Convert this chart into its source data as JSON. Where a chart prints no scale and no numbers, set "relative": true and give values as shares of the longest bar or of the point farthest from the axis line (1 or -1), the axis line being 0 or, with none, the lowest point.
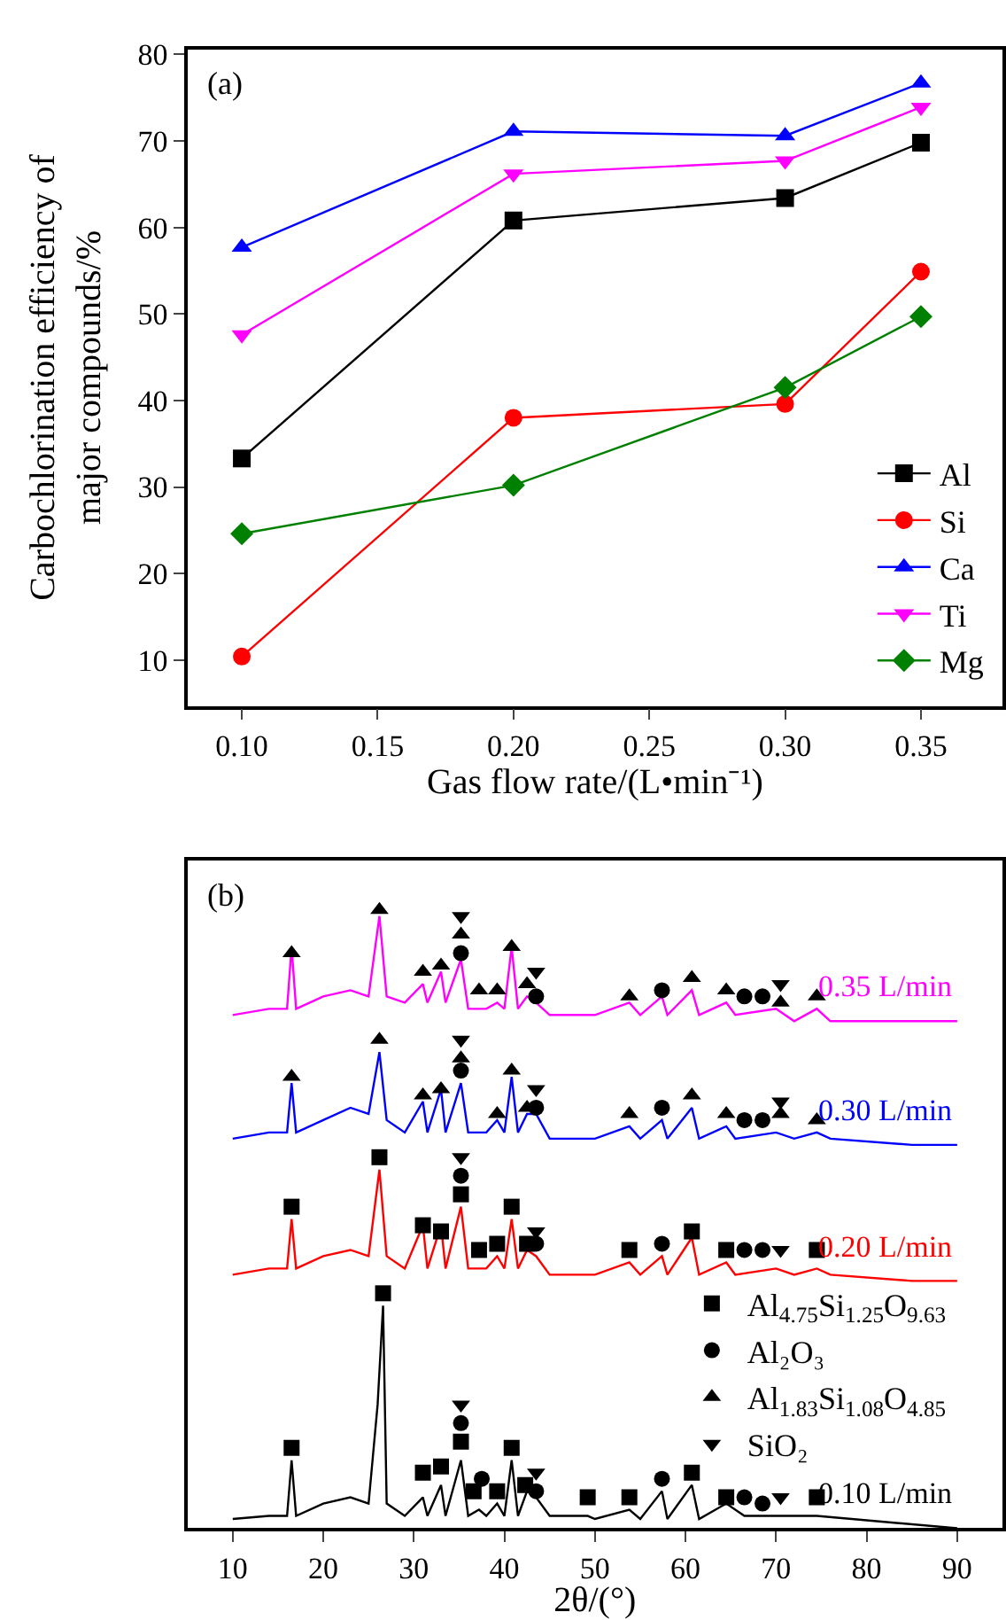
{
  "chart_data": [
    {
      "type": "line",
      "xlabel": "Gas flow rate/(L•min⁻¹)",
      "ylabel": "Carbochlorination efficiency of\nmajor compounds/%",
      "annotations": [
        "(a)"
      ],
      "x": [
        0.1,
        0.2,
        0.3,
        0.35
      ],
      "xlim": [
        0.08,
        0.38
      ],
      "xticks": [
        {
          "value": 0.1,
          "label": "0.10"
        },
        {
          "value": 0.15,
          "label": "0.15"
        },
        {
          "value": 0.2,
          "label": "0.20"
        },
        {
          "value": 0.25,
          "label": "0.25"
        },
        {
          "value": 0.3,
          "label": "0.30"
        },
        {
          "value": 0.35,
          "label": "0.35"
        }
      ],
      "ylim": [
        4.7,
        80.6
      ],
      "yticks": [
        10,
        20,
        30,
        40,
        50,
        60,
        70,
        80
      ],
      "legend": "bottom right",
      "series": [
        {
          "name": "Al",
          "color": "#000000",
          "marker": "square",
          "values": [
            33.3,
            60.8,
            63.4,
            69.8
          ]
        },
        {
          "name": "Si",
          "color": "#ff0000",
          "marker": "circle",
          "values": [
            10.4,
            38.0,
            39.6,
            54.9
          ]
        },
        {
          "name": "Ca",
          "color": "#0000ff",
          "marker": "triangle",
          "values": [
            57.7,
            71.1,
            70.6,
            76.7
          ]
        },
        {
          "name": "Ti",
          "color": "#ff00ff",
          "marker": "triangle-down",
          "values": [
            47.6,
            66.2,
            67.7,
            73.9
          ]
        },
        {
          "name": "Mg",
          "color": "#008000",
          "marker": "diamond",
          "values": [
            24.6,
            30.2,
            41.5,
            49.7
          ]
        }
      ]
    },
    {
      "type": "line",
      "xlabel": "2θ/(°)",
      "annotations": [
        "(b)"
      ],
      "relative": true,
      "xlim": [
        5,
        95
      ],
      "xticks": [
        10,
        20,
        30,
        40,
        50,
        60,
        70,
        80,
        90
      ],
      "legend": "right",
      "tick_labels": "x",
      "series": [
        {
          "name": "0.35 L/min",
          "color": "#ff00ff",
          "marker": "none",
          "x": [
            10,
            14,
            16,
            16.5,
            17,
            20,
            23,
            25,
            26.2,
            27,
            29,
            31,
            31.5,
            33,
            33.5,
            35.2,
            36,
            38,
            39.2,
            40,
            40.8,
            41.5,
            42.5,
            43.5,
            45,
            50,
            53.8,
            55,
            57.4,
            58,
            60.7,
            61.5,
            64.5,
            65.5,
            70,
            72,
            74.5,
            76,
            85,
            90
          ],
          "values": [
            0.83,
            0.84,
            0.84,
            0.94,
            0.84,
            0.86,
            0.87,
            0.86,
            0.99,
            0.86,
            0.85,
            0.88,
            0.85,
            0.9,
            0.85,
            0.92,
            0.84,
            0.84,
            0.85,
            0.84,
            0.94,
            0.84,
            0.86,
            0.85,
            0.83,
            0.83,
            0.85,
            0.83,
            0.86,
            0.83,
            0.87,
            0.83,
            0.85,
            0.83,
            0.84,
            0.82,
            0.84,
            0.82,
            0.82,
            0.82
          ]
        },
        {
          "name": "0.30 L/min",
          "color": "#0000ff",
          "marker": "none",
          "x": [
            10,
            14,
            16,
            16.5,
            17,
            20,
            23,
            25,
            26.2,
            27,
            29,
            31,
            31.5,
            33,
            33.5,
            35.2,
            36,
            38,
            39.2,
            40,
            40.8,
            41.5,
            42.5,
            43.5,
            45,
            50,
            53.8,
            55,
            57.4,
            58,
            60.7,
            61.5,
            64.5,
            65.5,
            70,
            72,
            74.5,
            76,
            85,
            90
          ],
          "values": [
            0.63,
            0.64,
            0.64,
            0.72,
            0.64,
            0.66,
            0.68,
            0.67,
            0.77,
            0.66,
            0.64,
            0.69,
            0.64,
            0.71,
            0.64,
            0.72,
            0.64,
            0.64,
            0.66,
            0.64,
            0.73,
            0.64,
            0.67,
            0.67,
            0.63,
            0.63,
            0.65,
            0.63,
            0.66,
            0.63,
            0.68,
            0.63,
            0.65,
            0.63,
            0.64,
            0.63,
            0.64,
            0.63,
            0.62,
            0.62
          ]
        },
        {
          "name": "0.20 L/min",
          "color": "#ff0000",
          "marker": "none",
          "x": [
            10,
            14,
            16,
            16.5,
            17,
            20,
            23,
            25,
            26.2,
            27,
            29,
            31,
            31.5,
            33,
            33.5,
            35.2,
            36,
            38,
            39.2,
            40,
            40.8,
            41.5,
            42.5,
            43.5,
            45,
            50,
            53.8,
            55,
            57.4,
            58,
            60.7,
            61.5,
            64.5,
            65.5,
            70,
            72,
            74.5,
            76,
            85,
            90
          ],
          "values": [
            0.41,
            0.42,
            0.42,
            0.5,
            0.42,
            0.44,
            0.45,
            0.44,
            0.58,
            0.44,
            0.42,
            0.49,
            0.42,
            0.49,
            0.42,
            0.52,
            0.42,
            0.42,
            0.44,
            0.42,
            0.5,
            0.42,
            0.45,
            0.44,
            0.41,
            0.41,
            0.43,
            0.41,
            0.44,
            0.41,
            0.47,
            0.41,
            0.43,
            0.41,
            0.42,
            0.41,
            0.42,
            0.41,
            0.4,
            0.4
          ]
        },
        {
          "name": "0.10 L/min",
          "color": "#000000",
          "marker": "none",
          "x": [
            10,
            14,
            16,
            16.5,
            17,
            20,
            23,
            25,
            26,
            26.6,
            27,
            29,
            31,
            31.5,
            33,
            33.5,
            35.2,
            36,
            37.2,
            38,
            39.2,
            40,
            40.8,
            41.5,
            42.5,
            43.5,
            45,
            49.2,
            50,
            53.8,
            55,
            57.4,
            58,
            60.7,
            61.5,
            64.5,
            66.5,
            70.5,
            74.5,
            90
          ],
          "values": [
            0.015,
            0.02,
            0.02,
            0.11,
            0.02,
            0.04,
            0.05,
            0.04,
            0.2,
            0.36,
            0.04,
            0.02,
            0.05,
            0.02,
            0.07,
            0.02,
            0.11,
            0.02,
            0.03,
            0.02,
            0.04,
            0.02,
            0.11,
            0.02,
            0.06,
            0.05,
            0.02,
            0.02,
            0.015,
            0.03,
            0.015,
            0.06,
            0.015,
            0.07,
            0.015,
            0.04,
            0.02,
            0.02,
            0.02,
            0.0
          ]
        },
        {
          "name": "Al$_{4.75}$Si$_{1.25}$O$_{9.63}$",
          "type": "scatter",
          "color": "#000000",
          "marker": "square",
          "x": [
            16.5,
            26.2,
            31,
            33,
            35.2,
            37.2,
            39.2,
            40.8,
            42.5,
            53.8,
            60.7,
            64.5,
            74.5,
            16.5,
            26.6,
            31,
            33,
            35.2,
            36.6,
            39.2,
            40.8,
            42.3,
            49.2,
            53.8,
            60.7,
            64.5,
            74.5
          ],
          "values": [
            0.52,
            0.6,
            0.49,
            0.48,
            0.54,
            0.45,
            0.46,
            0.52,
            0.46,
            0.45,
            0.48,
            0.45,
            0.45,
            0.13,
            0.38,
            0.09,
            0.1,
            0.14,
            0.06,
            0.06,
            0.13,
            0.07,
            0.05,
            0.05,
            0.09,
            0.05,
            0.05
          ]
        },
        {
          "name": "Al₂O₃",
          "type": "scatter",
          "color": "#000000",
          "marker": "circle",
          "x": [
            35.2,
            43.5,
            57.4,
            66.5,
            68.5,
            35.2,
            43.5,
            57.4,
            66.5,
            68.5,
            35.2,
            43.5,
            57.4,
            66.5,
            68.5,
            35.2,
            37.5,
            43.5,
            57.4,
            66.5,
            68.5
          ],
          "values": [
            0.93,
            0.86,
            0.87,
            0.86,
            0.86,
            0.74,
            0.68,
            0.68,
            0.66,
            0.66,
            0.57,
            0.46,
            0.46,
            0.45,
            0.45,
            0.17,
            0.08,
            0.06,
            0.08,
            0.05,
            0.04
          ]
        },
        {
          "name": "Al$_{1.83}$Si$_{1.08}$O$_{4.85}$",
          "type": "scatter",
          "color": "#000000",
          "marker": "triangle",
          "x": [
            16.5,
            26.2,
            31,
            33,
            35.2,
            37.2,
            39.2,
            40.8,
            42.5,
            53.8,
            60.7,
            64.5,
            70.5,
            74.5,
            16.5,
            26.2,
            31,
            33,
            35.2,
            39.2,
            40.8,
            42.5,
            53.8,
            60.7,
            64.5,
            70.5,
            74.5
          ],
          "values": [
            0.93,
            1.0,
            0.9,
            0.91,
            0.96,
            0.87,
            0.87,
            0.94,
            0.88,
            0.86,
            0.89,
            0.87,
            0.85,
            0.86,
            0.73,
            0.79,
            0.7,
            0.71,
            0.76,
            0.67,
            0.74,
            0.68,
            0.67,
            0.7,
            0.67,
            0.67,
            0.66
          ]
        },
        {
          "name": "SiO₂",
          "type": "scatter",
          "color": "#000000",
          "marker": "triangle-down",
          "x": [
            35.2,
            43.5,
            70.5,
            35.2,
            43.5,
            70.5,
            35.2,
            43.5,
            70.5,
            35.2,
            43.5,
            70.5
          ],
          "values": [
            0.99,
            0.9,
            0.88,
            0.79,
            0.71,
            0.69,
            0.6,
            0.48,
            0.45,
            0.2,
            0.09,
            0.05
          ]
        }
      ]
    }
  ]
}
